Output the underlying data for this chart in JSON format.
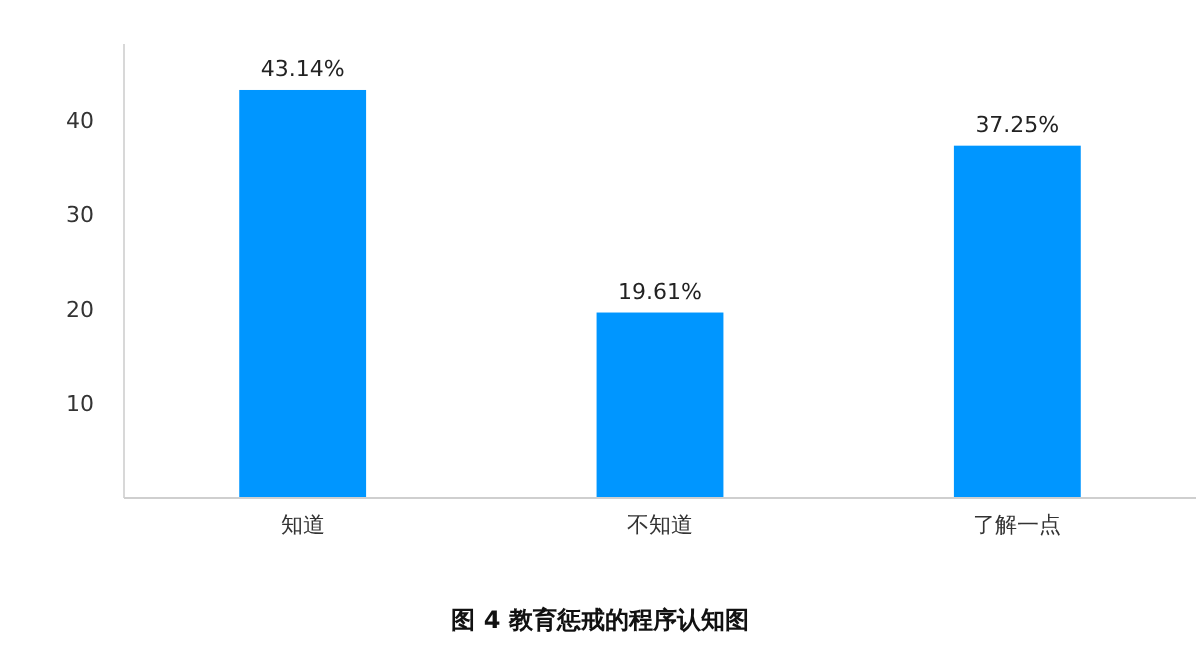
{
  "chart_data": {
    "type": "bar",
    "title": "图 4  教育惩戒的程序认知图",
    "categories": [
      "知道",
      "不知道",
      "了解一点"
    ],
    "values": [
      43.14,
      19.61,
      37.25
    ],
    "value_labels": [
      "43.14%",
      "19.61%",
      "37.25%"
    ],
    "color": "#0096ff",
    "ylim": [
      0,
      48
    ],
    "yticks": [
      10,
      20,
      30,
      40
    ]
  }
}
